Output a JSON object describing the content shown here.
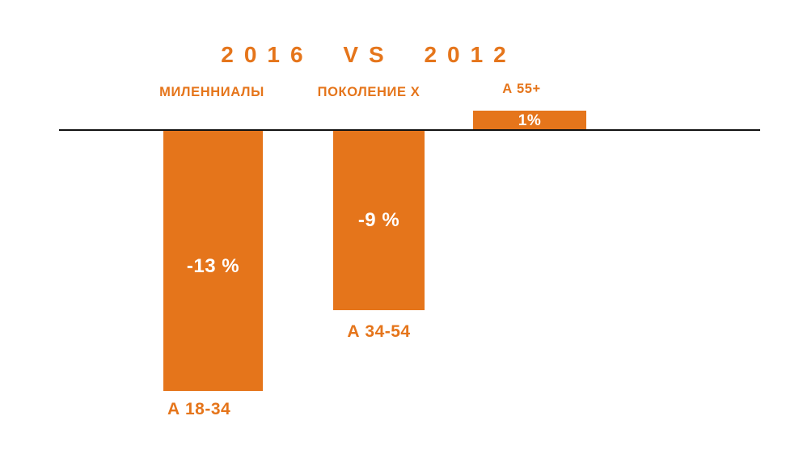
{
  "page": {
    "background": "#FFFFFF"
  },
  "chart_data": {
    "type": "bar",
    "title": "2016 VS 2012",
    "categories": [
      "МИЛЕННИАЛЫ",
      "ПОКОЛЕНИЕ X",
      "А 55+"
    ],
    "values": [
      -13,
      -9,
      1
    ],
    "unit": "%",
    "baseline_value": 0,
    "grid": false,
    "legend": false,
    "orientation": "vertical",
    "bars": [
      {
        "group_label": "МИЛЕННИАЛЫ",
        "age_label": "А 18-34",
        "value": -13,
        "value_label": "-13 %"
      },
      {
        "group_label": "ПОКОЛЕНИЕ X",
        "age_label": "А 34-54",
        "value": -9,
        "value_label": "-9 %"
      },
      {
        "group_label": "А 55+",
        "age_label": "",
        "value": 1,
        "value_label": "1%"
      }
    ],
    "colors": {
      "bar": "#E5751B",
      "category_text": "#E5751B",
      "value_text": "#FFFFFF",
      "baseline": "#111111",
      "background": "#FFFFFF"
    }
  }
}
